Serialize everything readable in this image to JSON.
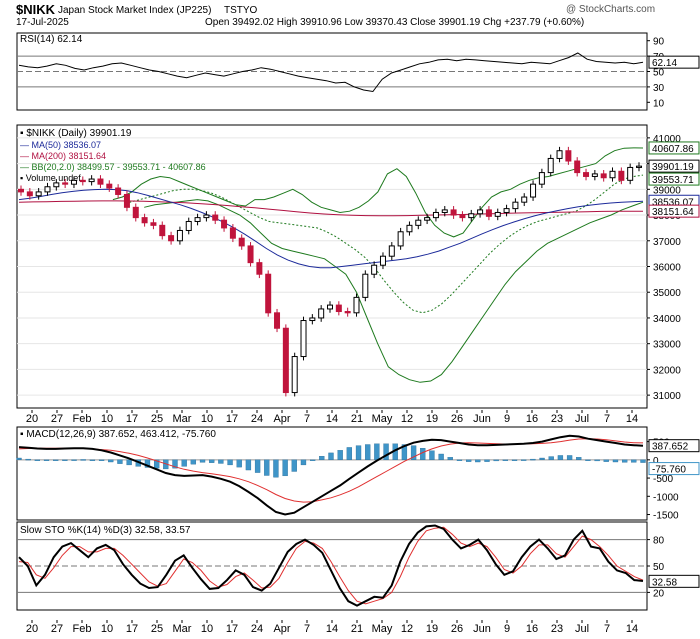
{
  "header": {
    "symbol": "$NIKK",
    "name": "Japan Stock Market Index (JP225)",
    "exchange": "TSTYO",
    "date": "17-Jul-2025",
    "ohlc": "Open 39492.02  High 39910.96  Low 39370.43  Close 39901.19  Chg +237.79 (+0.60%)",
    "watermark": "@ StockCharts.com"
  },
  "x_axis_labels": [
    "20",
    "27",
    "Feb",
    "10",
    "17",
    "25",
    "Mar",
    "10",
    "17",
    "24",
    "Apr",
    "7",
    "14",
    "21",
    "May",
    "12",
    "19",
    "26",
    "Jun",
    "9",
    "16",
    "23",
    "Jul",
    "7",
    "14"
  ],
  "colors": {
    "up": "#000000",
    "down": "#c0143c",
    "ma50": "#1c2a9a",
    "ma200": "#b01040",
    "bb": "#1e7a1e",
    "hist": "#3f95c8",
    "signal": "#e03030"
  },
  "chart_data": [
    {
      "type": "line",
      "title": "RSI(14) 62.14",
      "ylim": [
        0,
        100
      ],
      "yticks": [
        "90",
        "70",
        "50",
        "30",
        "10"
      ],
      "ref_lines": [
        70,
        50,
        30
      ],
      "last_value": "62.14",
      "series": [
        {
          "name": "RSI(14)",
          "values": [
            58,
            56,
            55,
            57,
            60,
            58,
            54,
            52,
            55,
            57,
            60,
            61,
            58,
            55,
            52,
            50,
            47,
            44,
            42,
            45,
            48,
            46,
            44,
            47,
            50,
            52,
            55,
            53,
            50,
            47,
            44,
            42,
            40,
            38,
            35,
            36,
            30,
            26,
            24,
            40,
            48,
            52,
            56,
            60,
            62,
            65,
            66,
            64,
            66,
            65,
            64,
            63,
            62,
            61,
            60,
            62,
            61,
            60,
            64,
            68,
            74,
            66,
            63,
            62,
            61,
            62,
            60,
            62
          ]
        }
      ]
    },
    {
      "type": "candlestick",
      "title": "$NIKK (Daily) 39901.19",
      "ylim": [
        30500,
        41500
      ],
      "yticks": [
        "41000",
        "40000",
        "39000",
        "38000",
        "37000",
        "36000",
        "35000",
        "34000",
        "33000",
        "32000",
        "31000"
      ],
      "legend": [
        "MA(50) 38536.07",
        "MA(200) 38151.64",
        "BB(20,2.0) 38499.57 - 39553.71 - 40607.86",
        "Volume undef"
      ],
      "price_tags": [
        "40607.86",
        "39901.19",
        "39553.71",
        "38536.07",
        "38151.64"
      ],
      "close": [
        38900,
        38750,
        38900,
        39100,
        39250,
        39200,
        39350,
        39300,
        39400,
        39200,
        39050,
        38800,
        38300,
        37900,
        37700,
        37600,
        37200,
        37000,
        37400,
        37750,
        37900,
        38000,
        37800,
        37500,
        37100,
        36800,
        36150,
        35700,
        34200,
        33600,
        31100,
        32500,
        33900,
        34000,
        34350,
        34500,
        34250,
        34200,
        34800,
        35700,
        36050,
        36400,
        36800,
        37350,
        37600,
        37800,
        37900,
        38100,
        38200,
        38000,
        37900,
        38050,
        38200,
        37950,
        38100,
        38250,
        38500,
        38700,
        39200,
        39650,
        40200,
        40500,
        40100,
        39650,
        39500,
        39600,
        39450,
        39700,
        39350,
        39850,
        39901
      ],
      "ma50": [
        38600,
        38650,
        38720,
        38800,
        38870,
        38920,
        38960,
        38990,
        39000,
        38990,
        38950,
        38870,
        38760,
        38640,
        38520,
        38400,
        38260,
        38100,
        37920,
        37720,
        37500,
        37250,
        36980,
        36700,
        36450,
        36250,
        36100,
        36000,
        35950,
        35950,
        36000,
        36050,
        36100,
        36150,
        36200,
        36250,
        36300,
        36380,
        36480,
        36600,
        36750,
        36900,
        37080,
        37260,
        37430,
        37590,
        37730,
        37860,
        37980,
        38080,
        38170,
        38250,
        38320,
        38380,
        38430,
        38470,
        38500,
        38520,
        38536
      ],
      "ma200": [
        38500,
        38510,
        38520,
        38530,
        38540,
        38545,
        38550,
        38550,
        38545,
        38535,
        38520,
        38500,
        38475,
        38445,
        38410,
        38370,
        38325,
        38280,
        38230,
        38180,
        38130,
        38080,
        38040,
        38010,
        37990,
        37980,
        37975,
        37975,
        37980,
        37990,
        38000,
        38010,
        38020,
        38035,
        38050,
        38065,
        38080,
        38090,
        38100,
        38110,
        38120,
        38130,
        38140,
        38145,
        38150,
        38151
      ],
      "bb_upper": [
        38600,
        38700,
        38900,
        39200,
        39400,
        39500,
        39450,
        39300,
        39150,
        39000,
        38850,
        38700,
        38550,
        38400,
        38350,
        38600,
        38600,
        38700,
        38850,
        39000,
        38800,
        38500,
        38300,
        38200,
        38100,
        38150,
        38300,
        38550,
        38900,
        39600,
        39800,
        39500,
        38850,
        38100,
        37600,
        37300,
        37150,
        37300,
        37800,
        38300,
        38700,
        38900,
        39000,
        39200,
        39350,
        39450,
        39500,
        39600,
        39700,
        39800,
        39900,
        40000,
        40300,
        40500,
        40600,
        40610,
        40607
      ],
      "bb_middle": [
        38450,
        38550,
        38650,
        38750,
        38850,
        38950,
        39000,
        39000,
        38950,
        38850,
        38700,
        38500,
        38300,
        38100,
        37900,
        37750,
        37700,
        37650,
        37600,
        37550,
        37500,
        37350,
        37150,
        36900,
        36650,
        36350,
        35950,
        35450,
        35000,
        34600,
        34300,
        34200,
        34300,
        34550,
        34900,
        35300,
        35700,
        36100,
        36500,
        36850,
        37150,
        37400,
        37600,
        37750,
        37850,
        37950,
        38050,
        38150,
        38350,
        38600,
        38900,
        39200,
        39400,
        39500,
        39553
      ],
      "bb_lower": [
        38300,
        38400,
        38450,
        38500,
        38550,
        38600,
        38550,
        38400,
        38200,
        38000,
        37700,
        37300,
        36900,
        36700,
        36600,
        36500,
        36400,
        36300,
        36000,
        35700,
        35000,
        34000,
        33000,
        32100,
        31800,
        31600,
        31500,
        31550,
        31800,
        32300,
        32900,
        33500,
        34100,
        34700,
        35300,
        35800,
        36200,
        36600,
        36900,
        37100,
        37300,
        37500,
        37700,
        37850,
        38000,
        38200,
        38350,
        38500
      ]
    },
    {
      "type": "area",
      "title": "MACD(12,26,9) 387.652, 463.412, -75.760",
      "ylim": [
        -1650,
        900
      ],
      "yticks": [
        "500",
        "0",
        "-500",
        "-1000",
        "-1500"
      ],
      "tags": [
        "387.652",
        "-75.760"
      ],
      "series": [
        {
          "name": "MACD",
          "values": [
            350,
            330,
            310,
            300,
            300,
            310,
            320,
            320,
            300,
            260,
            200,
            120,
            40,
            -60,
            -160,
            -260,
            -360,
            -420,
            -440,
            -430,
            -420,
            -460,
            -520,
            -600,
            -720,
            -880,
            -1050,
            -1250,
            -1430,
            -1500,
            -1450,
            -1300,
            -1150,
            -1000,
            -850,
            -700,
            -520,
            -350,
            -180,
            -20,
            120,
            260,
            380,
            470,
            520,
            550,
            540,
            500,
            460,
            420,
            400,
            400,
            410,
            420,
            430,
            440,
            460,
            500,
            560,
            620,
            660,
            640,
            580,
            540,
            500,
            460,
            420,
            400,
            387
          ]
        },
        {
          "name": "Signal",
          "values": [
            300,
            310,
            315,
            318,
            320,
            318,
            315,
            310,
            300,
            280,
            260,
            225,
            180,
            120,
            50,
            -30,
            -110,
            -190,
            -260,
            -310,
            -350,
            -380,
            -420,
            -460,
            -520,
            -600,
            -700,
            -820,
            -950,
            -1060,
            -1130,
            -1160,
            -1150,
            -1100,
            -1040,
            -960,
            -860,
            -740,
            -600,
            -460,
            -320,
            -180,
            -40,
            80,
            200,
            300,
            380,
            430,
            460,
            470,
            460,
            450,
            440,
            430,
            430,
            435,
            440,
            450,
            470,
            500,
            540,
            570,
            580,
            570,
            550,
            520,
            490,
            470,
            463
          ]
        },
        {
          "name": "Histogram",
          "values": [
            50,
            20,
            -5,
            -18,
            -20,
            -8,
            5,
            10,
            0,
            -20,
            -60,
            -105,
            -140,
            -180,
            -210,
            -230,
            -250,
            -230,
            -180,
            -120,
            -70,
            -80,
            -100,
            -140,
            -200,
            -280,
            -350,
            -430,
            -480,
            -440,
            -320,
            -140,
            0,
            100,
            190,
            260,
            340,
            390,
            420,
            440,
            440,
            440,
            420,
            390,
            320,
            250,
            160,
            70,
            0,
            -50,
            -60,
            -50,
            -30,
            -10,
            0,
            5,
            20,
            50,
            90,
            120,
            120,
            70,
            0,
            -30,
            -50,
            -60,
            -70,
            -70,
            -76
          ]
        }
      ]
    },
    {
      "type": "line",
      "title": "Slow STO %K(14) %D(3) 32.58, 33.57",
      "ylim": [
        0,
        100
      ],
      "yticks": [
        "80",
        "50",
        "20"
      ],
      "ref_lines": [
        80,
        50,
        20
      ],
      "tag": "32.58",
      "series": [
        {
          "name": "%K",
          "values": [
            60,
            50,
            28,
            40,
            60,
            72,
            76,
            68,
            60,
            70,
            74,
            68,
            52,
            40,
            30,
            25,
            26,
            40,
            56,
            62,
            48,
            35,
            24,
            25,
            34,
            45,
            40,
            26,
            22,
            30,
            48,
            66,
            75,
            80,
            74,
            65,
            45,
            25,
            10,
            5,
            10,
            15,
            14,
            28,
            55,
            75,
            88,
            95,
            96,
            92,
            80,
            70,
            74,
            80,
            68,
            52,
            40,
            44,
            60,
            72,
            80,
            70,
            58,
            62,
            80,
            90,
            72,
            70,
            55,
            45,
            42,
            34,
            33
          ]
        },
        {
          "name": "%D",
          "values": [
            55,
            54,
            40,
            36,
            48,
            62,
            72,
            72,
            66,
            66,
            70,
            70,
            62,
            52,
            42,
            32,
            27,
            30,
            44,
            58,
            54,
            45,
            33,
            26,
            29,
            38,
            42,
            34,
            25,
            26,
            36,
            54,
            70,
            78,
            76,
            70,
            55,
            38,
            22,
            10,
            7,
            10,
            13,
            20,
            38,
            60,
            78,
            90,
            93,
            94,
            86,
            76,
            72,
            76,
            72,
            60,
            46,
            42,
            50,
            64,
            74,
            74,
            64,
            60,
            72,
            84,
            80,
            72,
            62,
            50,
            44,
            38,
            34
          ]
        }
      ]
    }
  ]
}
